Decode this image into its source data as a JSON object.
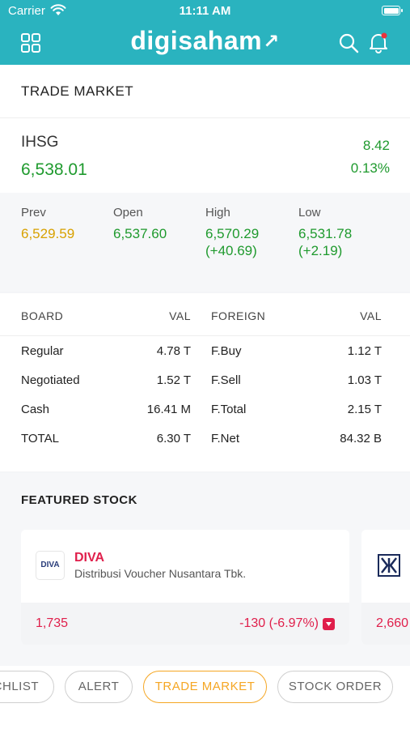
{
  "status_bar": {
    "carrier": "Carrier",
    "time": "11:11 AM"
  },
  "header": {
    "logo_text": "digisaham",
    "logo_arrow": "↗",
    "icons": [
      "grid-menu-icon",
      "search-icon",
      "bell-icon"
    ]
  },
  "page_title": "TRADE MARKET",
  "index": {
    "name": "IHSG",
    "value": "6,538.01",
    "change": "8.42",
    "change_pct": "0.13%",
    "stats": {
      "prev": {
        "label": "Prev",
        "value": "6,529.59"
      },
      "open": {
        "label": "Open",
        "value": "6,537.60"
      },
      "high": {
        "label": "High",
        "value": "6,570.29",
        "delta": "(+40.69)"
      },
      "low": {
        "label": "Low",
        "value": "6,531.78",
        "delta": "(+2.19)"
      }
    }
  },
  "board": {
    "headers": {
      "board": "BOARD",
      "val": "VAL",
      "foreign": "FOREIGN",
      "foreign_val": "VAL"
    },
    "rows": [
      {
        "board": "Regular",
        "val": "4.78 T",
        "foreign": "F.Buy",
        "foreign_val": "1.12 T"
      },
      {
        "board": "Negotiated",
        "val": "1.52 T",
        "foreign": "F.Sell",
        "foreign_val": "1.03 T"
      },
      {
        "board": "Cash",
        "val": "16.41 M",
        "foreign": "F.Total",
        "foreign_val": "2.15 T"
      },
      {
        "board": "TOTAL",
        "val": "6.30 T",
        "foreign": "F.Net",
        "foreign_val": "84.32 B"
      }
    ]
  },
  "featured": {
    "title": "FEATURED STOCK",
    "stocks": [
      {
        "logo": "DIVA",
        "code": "DIVA",
        "name": "Distribusi Voucher Nusantara Tbk.",
        "price": "1,735",
        "change": "-130 (-6.97%)"
      },
      {
        "price": "2,660"
      }
    ]
  },
  "tabs": [
    "CHLIST",
    "ALERT",
    "TRADE MARKET",
    "STOCK ORDER"
  ],
  "active_tab": "TRADE MARKET",
  "colors": {
    "header": "#2ab3bf",
    "up": "#1f9a2e",
    "down": "#e01f4b",
    "prev": "#d8a100",
    "active_tab": "#f5a623"
  }
}
